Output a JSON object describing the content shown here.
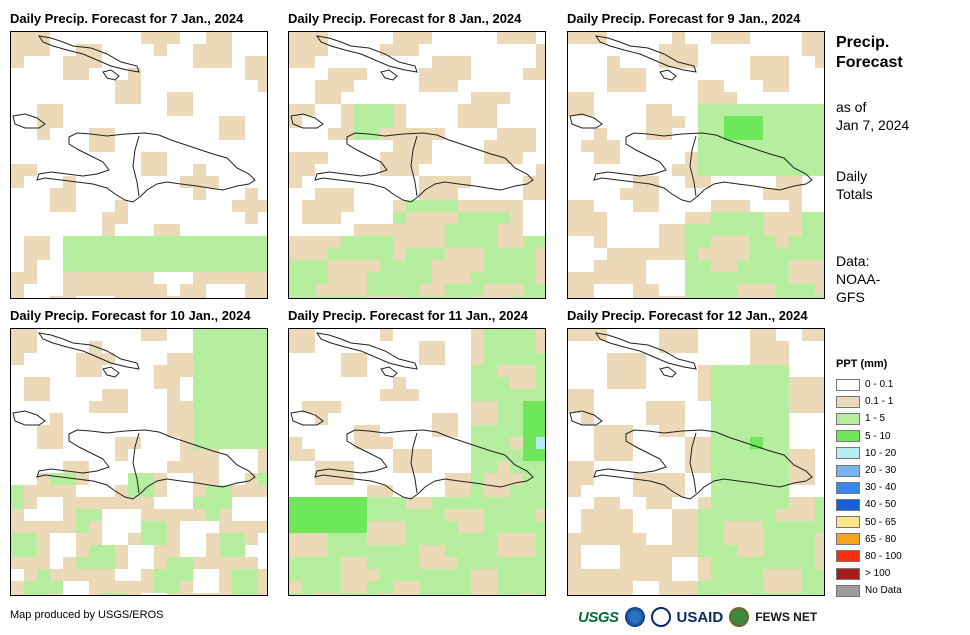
{
  "panels": [
    {
      "title": "Daily Precip. Forecast for 7 Jan., 2024"
    },
    {
      "title": "Daily Precip. Forecast for 8 Jan., 2024"
    },
    {
      "title": "Daily Precip. Forecast for 9 Jan., 2024"
    },
    {
      "title": "Daily Precip. Forecast for 10 Jan., 2024"
    },
    {
      "title": "Daily Precip. Forecast for 11 Jan., 2024"
    },
    {
      "title": "Daily Precip. Forecast for 12 Jan., 2024"
    }
  ],
  "side": {
    "title_line1": "Precip.",
    "title_line2": "Forecast",
    "asof_line1": "as of",
    "asof_line2": "Jan 7, 2024",
    "totals_line1": "Daily",
    "totals_line2": "Totals",
    "data_line1": "Data:",
    "data_line2": "NOAA-",
    "data_line3": "GFS"
  },
  "legend": {
    "title": "PPT (mm)",
    "items": [
      {
        "label": "0 - 0.1",
        "color": "#ffffff"
      },
      {
        "label": "0.1 - 1",
        "color": "#ecd9b8"
      },
      {
        "label": "1 - 5",
        "color": "#b4ee9e"
      },
      {
        "label": "5 - 10",
        "color": "#6ee85a"
      },
      {
        "label": "10 - 20",
        "color": "#b5edf3"
      },
      {
        "label": "20 - 30",
        "color": "#78b4f0"
      },
      {
        "label": "30 - 40",
        "color": "#3a87ec"
      },
      {
        "label": "40 - 50",
        "color": "#1560d8"
      },
      {
        "label": "50 - 65",
        "color": "#fde48a"
      },
      {
        "label": "65 - 80",
        "color": "#f7a21c"
      },
      {
        "label": "80 - 100",
        "color": "#f03010"
      },
      {
        "label": "> 100",
        "color": "#a41e1e"
      },
      {
        "label": "No Data",
        "color": "#9c9c9c"
      }
    ]
  },
  "credit": "Map produced by USGS/EROS",
  "logos": {
    "usgs": "USGS",
    "usaid": "USAID",
    "fews": "FEWS NET"
  }
}
